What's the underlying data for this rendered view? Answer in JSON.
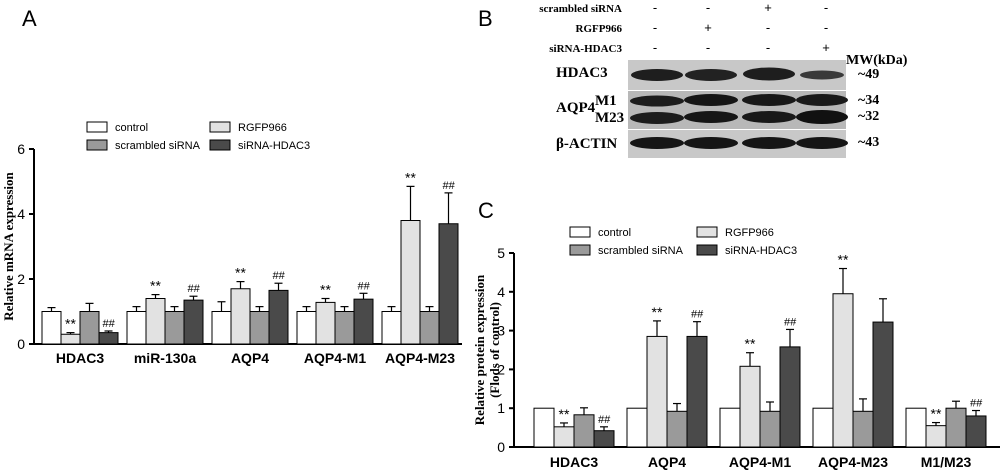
{
  "panels": {
    "a": "A",
    "b": "B",
    "c": "C"
  },
  "legend": [
    {
      "label": "control",
      "color": "#ffffff"
    },
    {
      "label": "scrambled siRNA",
      "color": "#9a9a9a"
    },
    {
      "label": "RGFP966",
      "color": "#e2e2e2"
    },
    {
      "label": "siRNA-HDAC3",
      "color": "#4a4a4a"
    }
  ],
  "chart_data": [
    {
      "type": "bar",
      "title": "",
      "xlabel": "",
      "ylabel": "Relative mRNA expression",
      "ylim": [
        0,
        6
      ],
      "yticks": [
        "0",
        "2",
        "4",
        "6"
      ],
      "legend_position": "top-left",
      "categories": [
        "HDAC3",
        "miR-130a",
        "AQP4",
        "AQP4-M1",
        "AQP4-M23"
      ],
      "series": [
        {
          "name": "control",
          "color": "#ffffff",
          "values": [
            1.0,
            1.0,
            1.0,
            1.0,
            1.0
          ],
          "errors": [
            0.12,
            0.15,
            0.3,
            0.15,
            0.15
          ]
        },
        {
          "name": "RGFP966",
          "color": "#e2e2e2",
          "values": [
            0.3,
            1.4,
            1.7,
            1.28,
            3.8
          ],
          "errors": [
            0.05,
            0.12,
            0.22,
            0.12,
            1.05
          ]
        },
        {
          "name": "scrambled siRNA",
          "color": "#9a9a9a",
          "values": [
            1.0,
            1.0,
            1.0,
            1.0,
            1.0
          ],
          "errors": [
            0.25,
            0.15,
            0.15,
            0.15,
            0.15
          ]
        },
        {
          "name": "siRNA-HDAC3",
          "color": "#4a4a4a",
          "values": [
            0.35,
            1.35,
            1.65,
            1.38,
            3.7
          ],
          "errors": [
            0.05,
            0.12,
            0.22,
            0.18,
            0.95
          ]
        }
      ],
      "annotations": [
        {
          "text": "**",
          "category": "HDAC3",
          "series": "RGFP966"
        },
        {
          "text": "##",
          "category": "HDAC3",
          "series": "siRNA-HDAC3"
        },
        {
          "text": "**",
          "category": "miR-130a",
          "series": "RGFP966"
        },
        {
          "text": "##",
          "category": "miR-130a",
          "series": "siRNA-HDAC3"
        },
        {
          "text": "**",
          "category": "AQP4",
          "series": "RGFP966"
        },
        {
          "text": "##",
          "category": "AQP4",
          "series": "siRNA-HDAC3"
        },
        {
          "text": "**",
          "category": "AQP4-M1",
          "series": "RGFP966"
        },
        {
          "text": "##",
          "category": "AQP4-M1",
          "series": "siRNA-HDAC3"
        },
        {
          "text": "**",
          "category": "AQP4-M23",
          "series": "RGFP966"
        },
        {
          "text": "##",
          "category": "AQP4-M23",
          "series": "siRNA-HDAC3"
        }
      ]
    },
    {
      "type": "bar",
      "title": "",
      "xlabel": "",
      "ylabel": "Relative protein expression",
      "ylabel2": "(Flods of control)",
      "ylim": [
        0,
        5
      ],
      "yticks": [
        "0",
        "1",
        "2",
        "3",
        "4",
        "5"
      ],
      "legend_position": "top-left",
      "categories": [
        "HDAC3",
        "AQP4",
        "AQP4-M1",
        "AQP4-M23",
        "M1/M23"
      ],
      "series": [
        {
          "name": "control",
          "color": "#ffffff",
          "values": [
            1.0,
            1.0,
            1.0,
            1.0,
            1.0
          ],
          "errors": [
            0,
            0,
            0,
            0,
            0
          ]
        },
        {
          "name": "RGFP966",
          "color": "#e2e2e2",
          "values": [
            0.52,
            2.85,
            2.08,
            3.95,
            0.55
          ],
          "errors": [
            0.1,
            0.4,
            0.35,
            0.65,
            0.08
          ]
        },
        {
          "name": "scrambled siRNA",
          "color": "#9a9a9a",
          "values": [
            0.83,
            0.92,
            0.92,
            0.92,
            1.0
          ],
          "errors": [
            0.18,
            0.2,
            0.24,
            0.32,
            0.18
          ]
        },
        {
          "name": "siRNA-HDAC3",
          "color": "#4a4a4a",
          "values": [
            0.42,
            2.85,
            2.58,
            3.22,
            0.8
          ],
          "errors": [
            0.1,
            0.38,
            0.45,
            0.6,
            0.14
          ]
        }
      ],
      "annotations": [
        {
          "text": "**",
          "category": "HDAC3",
          "series": "RGFP966"
        },
        {
          "text": "##",
          "category": "HDAC3",
          "series": "siRNA-HDAC3"
        },
        {
          "text": "**",
          "category": "AQP4",
          "series": "RGFP966"
        },
        {
          "text": "##",
          "category": "AQP4",
          "series": "siRNA-HDAC3"
        },
        {
          "text": "**",
          "category": "AQP4-M1",
          "series": "RGFP966"
        },
        {
          "text": "##",
          "category": "AQP4-M1",
          "series": "siRNA-HDAC3"
        },
        {
          "text": "**",
          "category": "AQP4-M23",
          "series": "RGFP966"
        },
        {
          "text": "**",
          "category": "M1/M23",
          "series": "RGFP966"
        },
        {
          "text": "##",
          "category": "M1/M23",
          "series": "siRNA-HDAC3"
        }
      ]
    }
  ],
  "western_blot": {
    "conditions": [
      {
        "label": "scrambled siRNA",
        "signs": [
          "-",
          "-",
          "+",
          "-"
        ]
      },
      {
        "label": "RGFP966",
        "signs": [
          "-",
          "+",
          "-",
          "-"
        ]
      },
      {
        "label": "siRNA-HDAC3",
        "signs": [
          "-",
          "-",
          "-",
          "+"
        ]
      }
    ],
    "mw_header": "MW(kDa)",
    "rows": {
      "hdac3": {
        "label": "HDAC3",
        "mw": "~49"
      },
      "aqp4": {
        "label": "AQP4",
        "m1": "M1",
        "m23": "M23",
        "mw_m1": "~34",
        "mw_m23": "~32"
      },
      "actin": {
        "label": "β-ACTIN",
        "mw": "~43"
      }
    }
  }
}
